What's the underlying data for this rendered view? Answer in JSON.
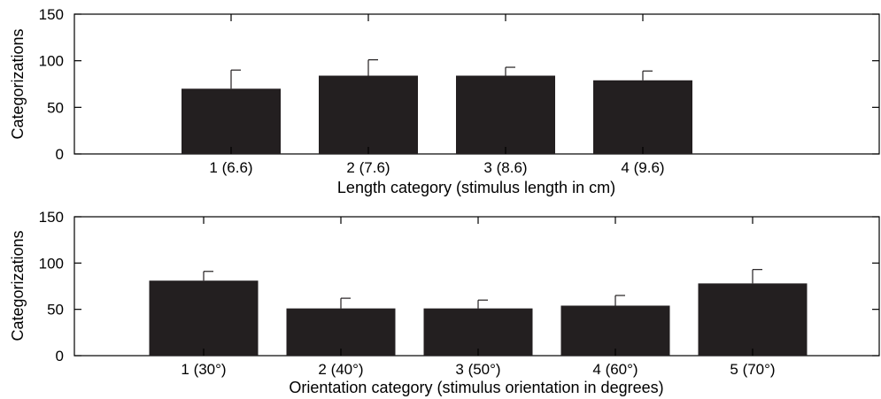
{
  "chart_data": [
    {
      "type": "bar",
      "categories": [
        "1 (6.6)",
        "2 (7.6)",
        "3 (8.6)",
        "4 (9.6)"
      ],
      "values": [
        70,
        84,
        84,
        79
      ],
      "error_upper": [
        90,
        101,
        93,
        89
      ],
      "xlabel": "Length category (stimulus length in cm)",
      "ylabel": "Categorizations",
      "ylim": [
        0,
        150
      ],
      "yticks": [
        "0",
        "50",
        "100",
        "150"
      ],
      "bar_color": "#231f20",
      "grid": false
    },
    {
      "type": "bar",
      "categories": [
        "1 (30°)",
        "2 (40°)",
        "3 (50°)",
        "4 (60°)",
        "5 (70°)"
      ],
      "values": [
        81,
        51,
        51,
        54,
        78
      ],
      "error_upper": [
        91,
        62,
        60,
        65,
        93
      ],
      "xlabel": "Orientation category (stimulus orientation in degrees)",
      "ylabel": "Categorizations",
      "ylim": [
        0,
        150
      ],
      "yticks": [
        "0",
        "50",
        "100",
        "150"
      ],
      "bar_color": "#231f20",
      "grid": false
    }
  ]
}
